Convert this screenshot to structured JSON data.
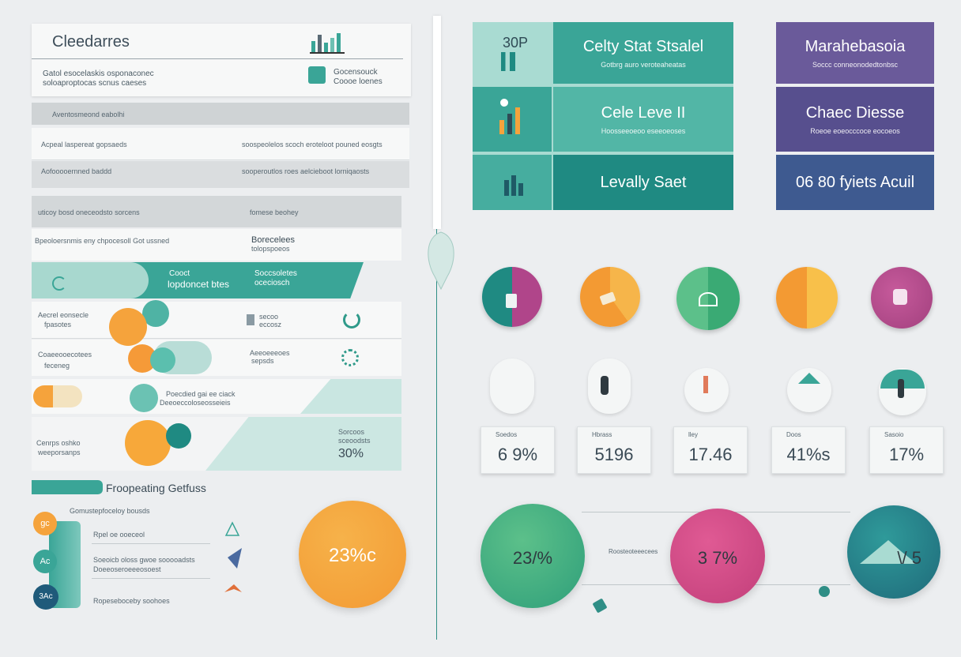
{
  "left": {
    "header_title": "Cleedarres",
    "header_sub1": "Gatol esocelaskis osponaconec",
    "header_sub2": "soloaproptocas scnus caeses",
    "header_badge1": "Gocensouck",
    "header_badge2": "Coooe loenes",
    "gray_row": "Aventosmeond eabolhi",
    "row1_left": "Acpeal laspereat gopsaeds",
    "row1_right": "soospeolelos scoch eroteloot pouned eosgts",
    "row2_left": "Aofooooernned baddd",
    "row2_right": "sooperoutlos roes aelcieboot lorniqaosts",
    "row3_left": "uticoy bosd oneceodsto sorcens",
    "row3_right": "fomese beohey",
    "row4_left": "Bpeoloersnmis eny chpocesoll Got ussned",
    "row4_right_title": "Borecelees",
    "row4_right_sub": "tolopspoeos",
    "teal_label1": "Cooct",
    "teal_label2": "lopdoncet btes",
    "teal_label3": "Soccsoletes",
    "teal_label4": "oceciosch",
    "item1_left1": "Aecrel eonsecle",
    "item1_left2": "fpasotes",
    "item1_mid1": "secoo",
    "item1_mid2": "eccosz",
    "item2_left1": "Coaeeooecotees",
    "item2_left2": "feceneg",
    "item2_mid1": "Aeeoeeeoes",
    "item2_mid2": "sepsds",
    "item3_mid1": "Poecdied gai ee ciack",
    "item3_mid2": "Deeoeccoloseosseieis",
    "item4_left1": "Cenrps oshko",
    "item4_left2": "weeporsanps",
    "item4_right1": "Sorcoos",
    "item4_right2": "sceoodsts",
    "item4_value": "30%",
    "footer_title": "Froopeating Getfuss",
    "footer_sub": "Gomustepfoceloy bousds",
    "footer_item1": "Rpel oe ooeceol",
    "footer_item2a": "Soeoicb oloss gwoe sooooadsts",
    "footer_item2b": "Doeeoseroeeeosoest",
    "footer_item3": "Ropeseboceby soohoes",
    "badge1": "gc",
    "badge2": "Ac",
    "badge3": "3Ac",
    "big_circle_value": "23%c"
  },
  "cards": {
    "teal1_badge": "30P",
    "teal1_title": "Celty Stat Stsalel",
    "teal1_sub": "Gotbrg auro veroteaheatas",
    "teal2_title": "Cele Leve II",
    "teal2_sub": "Hoosseeoeoo eseeoeoses",
    "teal3_title": "Levally Saet",
    "purple1_title": "Marahebasoia",
    "purple1_sub": "Soccc conneonodedtonbsc",
    "purple2_title": "Chaec Diesse",
    "purple2_sub": "Roeoe eoeocccoce eocoeos",
    "purple3_title": "06 80 fyiets Acuil"
  },
  "stats": [
    {
      "label": "Soedos",
      "value": "6 9%"
    },
    {
      "label": "Hbrass",
      "value": "5196"
    },
    {
      "label": "lley",
      "value": "17.46"
    },
    {
      "label": "Doos",
      "value": "41%s"
    },
    {
      "label": "Sasoio",
      "value": "17%"
    }
  ],
  "bottom": {
    "green_value": "23/%",
    "pink_value": "3 7%",
    "teal_value": "\\/ 5",
    "mid_label": "Roosteoteeecees"
  },
  "colors": {
    "teal": "#3aa597",
    "teal_dark": "#1f8a82",
    "purple": "#6a5a9a",
    "blue": "#3e5a90",
    "orange": "#f5a33c",
    "pink": "#d44a88",
    "green": "#5cc08a"
  }
}
